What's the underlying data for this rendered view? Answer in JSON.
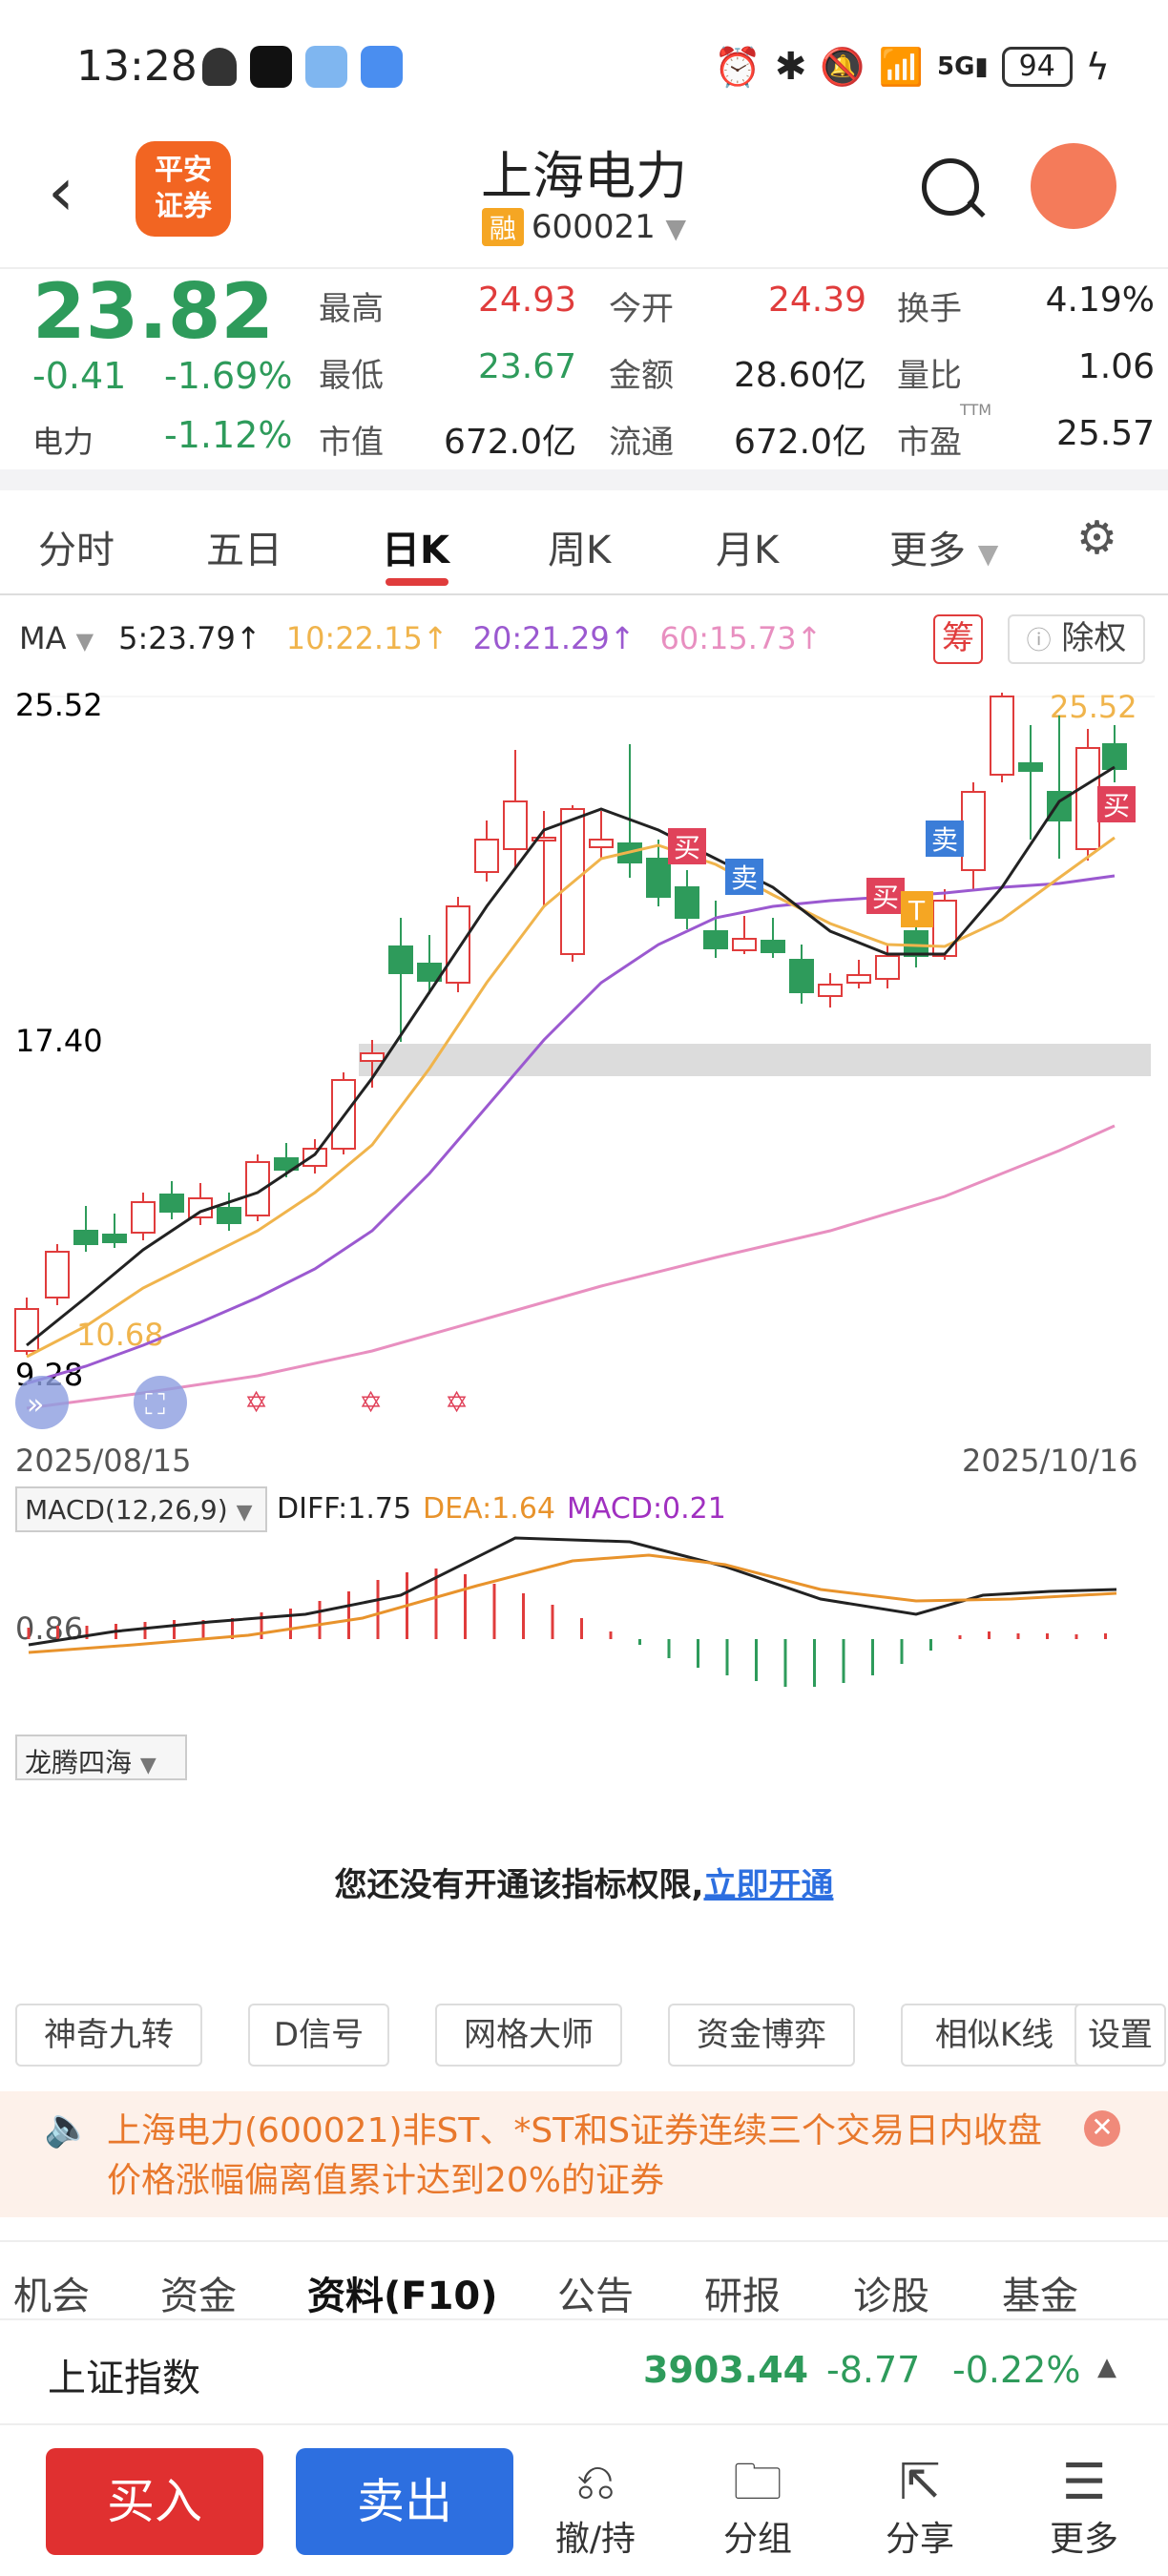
{
  "status_bar": {
    "time": "13:28",
    "battery": "94"
  },
  "header": {
    "logo_text_1": "平安",
    "logo_text_2": "证券",
    "title": "上海电力",
    "rong_badge": "融",
    "code": "600021"
  },
  "quote": {
    "price": "23.82",
    "change": "-0.41",
    "change_pct": "-1.69%",
    "sector_label": "电力",
    "sector_pct": "-1.12%",
    "fields": [
      {
        "label": "最高",
        "value": "24.93",
        "color": "red"
      },
      {
        "label": "今开",
        "value": "24.39",
        "color": "red"
      },
      {
        "label": "换手",
        "value": "4.19%",
        "color": "dark"
      },
      {
        "label": "最低",
        "value": "23.67",
        "color": "green"
      },
      {
        "label": "金额",
        "value": "28.60亿",
        "color": "dark"
      },
      {
        "label": "量比",
        "value": "1.06",
        "color": "dark"
      },
      {
        "label": "市值",
        "value": "672.0亿",
        "color": "dark"
      },
      {
        "label": "流通",
        "value": "672.0亿",
        "color": "dark"
      },
      {
        "label": "市盈",
        "value": "25.57",
        "color": "dark"
      }
    ],
    "ttm_label": "TTM"
  },
  "tabs": [
    "分时",
    "五日",
    "日K",
    "周K",
    "月K",
    "更多"
  ],
  "active_tab": "日K",
  "ma_row": {
    "ma_label": "MA",
    "ma5": "5:23.79↑",
    "ma10": "10:22.15↑",
    "ma20": "20:21.29↑",
    "ma60": "60:15.73↑",
    "chou_label": "筹",
    "chuquan_label": "除权"
  },
  "kline": {
    "y_top": "25.52",
    "y_mid": "17.40",
    "y_low": "9.28",
    "low_marker": "10.68",
    "high_marker": "25.52",
    "date_start": "2025/08/15",
    "date_end": "2025/10/16",
    "signals": [
      "买",
      "卖",
      "买",
      "T",
      "卖",
      "买"
    ]
  },
  "macd": {
    "label": "MACD(12,26,9)",
    "diff": "DIFF:1.75",
    "dea": "DEA:1.64",
    "macd": "MACD:0.21",
    "axis_label": "0.86"
  },
  "longteng": {
    "label": "龙腾四海",
    "message": "您还没有开通该指标权限,",
    "link": "立即开通"
  },
  "indicator_buttons": [
    "神奇九转",
    "D信号",
    "网格大师",
    "资金博弈",
    "相似K线",
    "设置"
  ],
  "notice": {
    "text": "上海电力(600021)非ST、*ST和S证券连续三个交易日内收盘价格涨幅偏离值累计达到20%的证券"
  },
  "bottom_tabs": [
    "机会",
    "资金",
    "资料(F10)",
    "公告",
    "研报",
    "诊股",
    "基金"
  ],
  "index_bar": {
    "name": "上证指数",
    "value": "3903.44",
    "change": "-8.77",
    "change_pct": "-0.22%"
  },
  "bottom_bar": {
    "buy": "买入",
    "sell": "卖出",
    "nav": [
      {
        "label": "撤/持",
        "icon": "undo-icon"
      },
      {
        "label": "分组",
        "icon": "folder-icon"
      },
      {
        "label": "分享",
        "icon": "share-icon"
      },
      {
        "label": "更多",
        "icon": "menu-icon"
      }
    ]
  },
  "colors": {
    "red": "#e03c3c",
    "green": "#2e9b5b",
    "ma5": "#222222",
    "ma10": "#f0b44c",
    "ma20": "#9b59d0",
    "ma60": "#e88fc0",
    "buy_btn": "#e03030",
    "sell_btn": "#2d6fe0"
  }
}
